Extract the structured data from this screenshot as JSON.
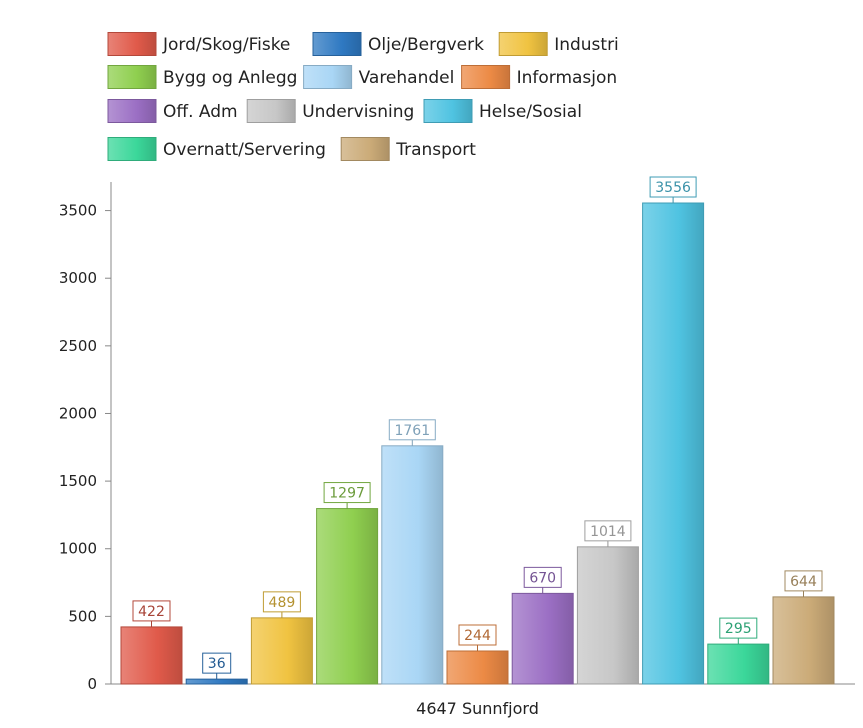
{
  "chart_data": {
    "type": "bar",
    "categories": [
      "4647 Sunnfjord"
    ],
    "xlabel": "",
    "ylabel": "",
    "ylim": [
      0,
      3800
    ],
    "yticks": [
      0,
      500,
      1000,
      1500,
      2000,
      2500,
      3000,
      3500
    ],
    "grid": false,
    "legend_position": "top",
    "value_labels": true,
    "series": [
      {
        "name": "Jord/Skog/Fiske",
        "values": [
          422
        ],
        "color": "#e05a4a"
      },
      {
        "name": "Olje/Bergverk",
        "values": [
          36
        ],
        "color": "#2f79c2"
      },
      {
        "name": "Industri",
        "values": [
          489
        ],
        "color": "#f0c341"
      },
      {
        "name": "Bygg og Anlegg",
        "values": [
          1297
        ],
        "color": "#8fcf4f"
      },
      {
        "name": "Varehandel",
        "values": [
          1761
        ],
        "color": "#a9d6f5"
      },
      {
        "name": "Informasjon",
        "values": [
          244
        ],
        "color": "#ec8a45"
      },
      {
        "name": "Off. Adm",
        "values": [
          670
        ],
        "color": "#9b6fc4"
      },
      {
        "name": "Undervisning",
        "values": [
          1014
        ],
        "color": "#c7c7c7"
      },
      {
        "name": "Helse/Sosial",
        "values": [
          3556
        ],
        "color": "#4fc3e1"
      },
      {
        "name": "Overnatt/Servering",
        "values": [
          295
        ],
        "color": "#3bd79a"
      },
      {
        "name": "Transport",
        "values": [
          644
        ],
        "color": "#cbab78"
      }
    ]
  }
}
